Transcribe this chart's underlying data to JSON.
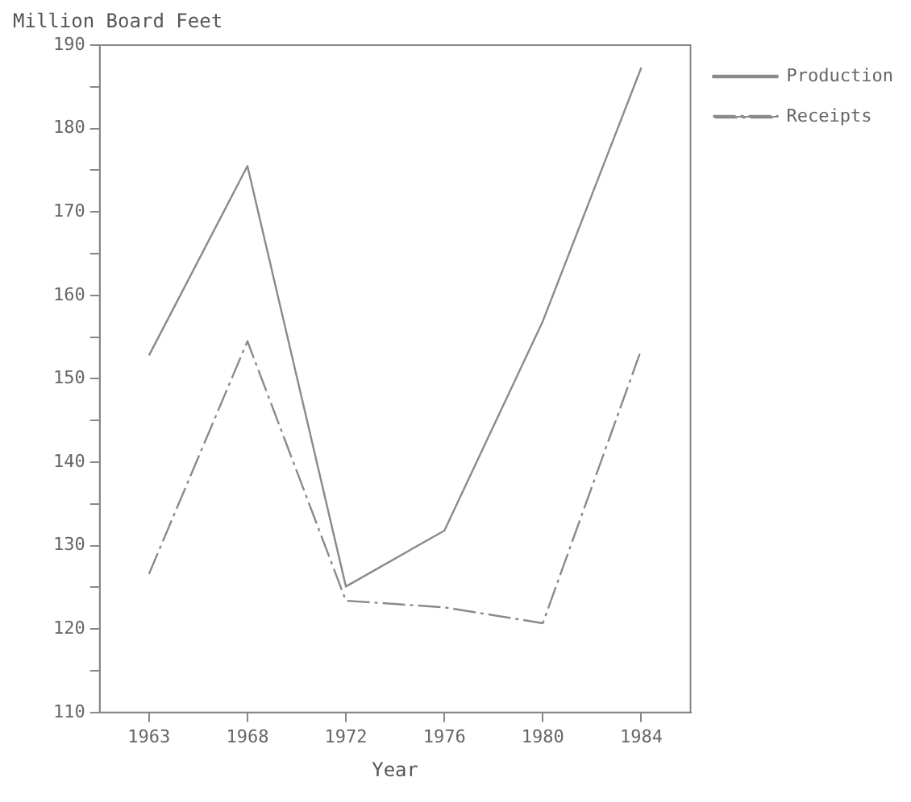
{
  "chart_data": {
    "type": "line",
    "xlabel": "Year",
    "ylabel": "Million Board Feet",
    "categories": [
      "1963",
      "1968",
      "1972",
      "1976",
      "1980",
      "1984"
    ],
    "series": [
      {
        "name": "Production",
        "color": "#8a8a8a",
        "line_style": "solid",
        "values": [
          152.8,
          175.5,
          125.1,
          131.8,
          156.9,
          187.3
        ]
      },
      {
        "name": "Receipts",
        "color": "#8a8a8a",
        "line_style": "dashed",
        "values": [
          126.6,
          154.5,
          123.4,
          122.6,
          120.7,
          153.5
        ]
      }
    ],
    "ylim": [
      110,
      190
    ],
    "yticks": [
      110,
      {
        "value": 115,
        "label": null
      },
      120,
      {
        "value": 125,
        "label": null
      },
      130,
      {
        "value": 135,
        "label": null
      },
      140,
      {
        "value": 145,
        "label": null
      },
      150,
      {
        "value": 155,
        "label": null
      },
      160,
      {
        "value": 165,
        "label": null
      },
      170,
      {
        "value": 175,
        "label": null
      },
      180,
      {
        "value": 185,
        "label": null
      },
      190
    ],
    "grid": false,
    "legend": "top right",
    "marker": "none"
  }
}
